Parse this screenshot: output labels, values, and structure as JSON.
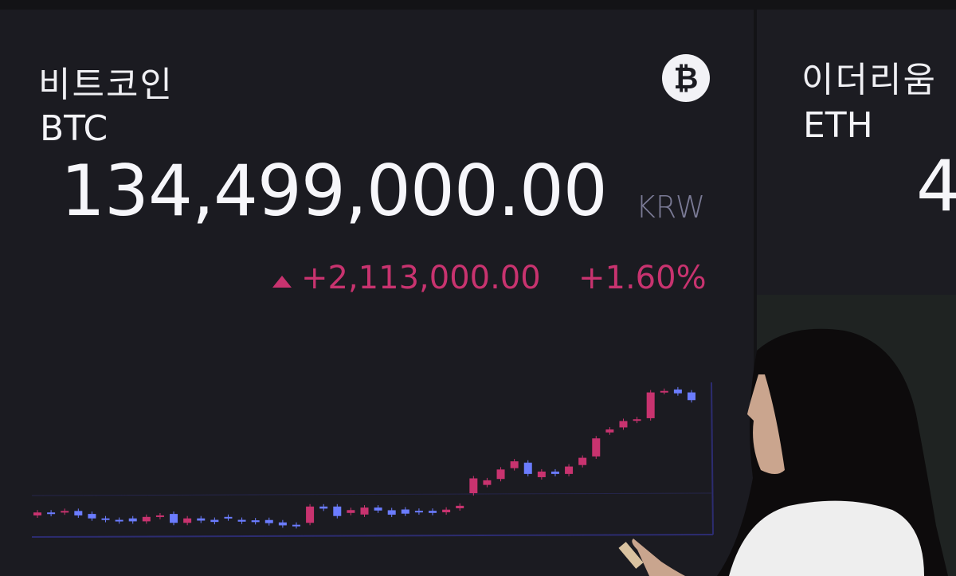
{
  "btc": {
    "name_kr": "비트코인",
    "symbol": "BTC",
    "price": "134,499,000.00",
    "currency": "KRW",
    "change": "+2,113,000.00",
    "change_pct": "+1.60%",
    "direction": "up",
    "icon": "bitcoin-icon",
    "icon_glyph": "₿"
  },
  "eth": {
    "name_kr": "이더리움",
    "symbol": "ETH",
    "price_partial": "4"
  },
  "colors": {
    "up": "#c8336f",
    "down": "#6b7cff",
    "background": "#1b1b21"
  },
  "chart_data": {
    "type": "candlestick",
    "note_units": "relative price level (no axis printed)",
    "candles": [
      [
        14,
        16
      ],
      [
        16,
        15
      ],
      [
        16,
        17
      ],
      [
        17,
        14
      ],
      [
        15,
        12
      ],
      [
        12,
        11
      ],
      [
        11,
        10
      ],
      [
        12,
        10
      ],
      [
        10,
        13
      ],
      [
        13,
        14
      ],
      [
        15,
        9
      ],
      [
        9,
        12
      ],
      [
        12,
        10.5
      ],
      [
        11,
        9.6
      ],
      [
        13,
        12
      ],
      [
        11,
        9.8
      ],
      [
        10.7,
        9.5
      ],
      [
        10.9,
        8.8
      ],
      [
        9.3,
        7.3
      ],
      [
        7.7,
        6.8
      ],
      [
        9,
        20
      ],
      [
        20,
        18.6
      ],
      [
        20,
        13.6
      ],
      [
        15.7,
        17.6
      ],
      [
        14.6,
        19.3
      ],
      [
        19.3,
        17.3
      ],
      [
        17.5,
        14.5
      ],
      [
        18,
        15.2
      ],
      [
        17.1,
        16.1
      ],
      [
        17.1,
        15.7
      ],
      [
        16.1,
        17.9
      ],
      [
        18.8,
        20.5
      ],
      [
        29,
        39
      ],
      [
        34.6,
        37.7
      ],
      [
        38.6,
        45
      ],
      [
        45.9,
        50.5
      ],
      [
        49.6,
        42
      ],
      [
        39.8,
        43.6
      ],
      [
        43.6,
        42
      ],
      [
        42,
        47
      ],
      [
        48,
        52.9
      ],
      [
        53.8,
        66
      ],
      [
        70,
        72
      ],
      [
        73.4,
        77.7
      ],
      [
        77.9,
        78.9
      ],
      [
        79.6,
        97
      ],
      [
        97.3,
        98
      ],
      [
        99,
        96.4
      ],
      [
        97,
        91.8
      ]
    ]
  }
}
